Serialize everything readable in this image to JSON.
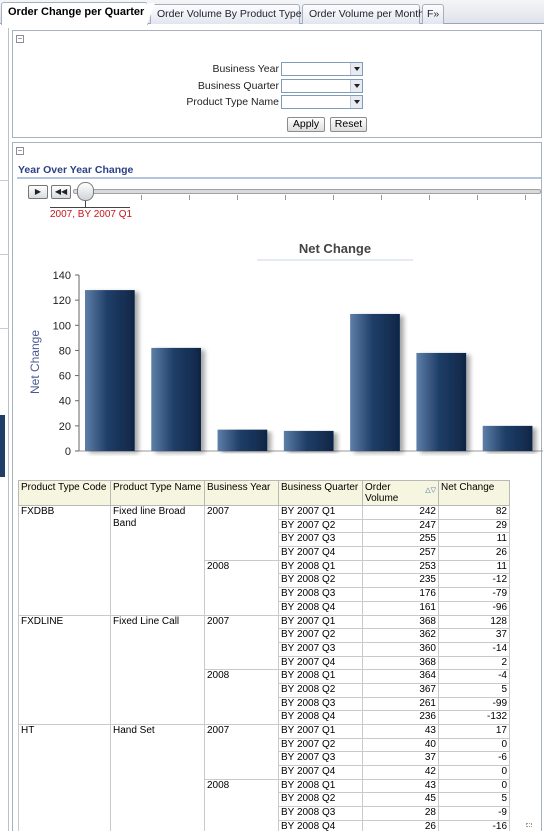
{
  "tabs": [
    {
      "label": "Order Change per Quarter",
      "active": true
    },
    {
      "label": "Order Volume By Product Type",
      "active": false
    },
    {
      "label": "Order Volume per Month",
      "active": false
    },
    {
      "label": "F»",
      "active": false
    }
  ],
  "prompts": {
    "business_year_label": "Business Year",
    "business_quarter_label": "Business Quarter",
    "product_type_label": "Product Type Name",
    "business_year_value": "",
    "business_quarter_value": "",
    "product_type_value": "",
    "apply_label": "Apply",
    "reset_label": "Reset"
  },
  "section": {
    "title": "Year Over Year Change",
    "collapse_icon": "minus-box-icon"
  },
  "slider": {
    "play_icon": "play-icon",
    "rewind_icon": "rewind-icon",
    "current_label": "2007, BY 2007 Q1",
    "position": 0,
    "accent_color": "#c4161c"
  },
  "chart_data": {
    "type": "bar",
    "title": "Net Change",
    "ylabel": "Net Change",
    "xlabel": "",
    "ylim": [
      0,
      140
    ],
    "yticks": [
      0,
      20,
      40,
      60,
      80,
      100,
      120,
      140
    ],
    "values": [
      128,
      82,
      17,
      16,
      109,
      78,
      20
    ],
    "bar_color": "#1f3e68",
    "grid": false
  },
  "table": {
    "headers": [
      "Product Type Code",
      "Product Type Name",
      "Business Year",
      "Business Quarter",
      "Order Volume",
      "Net Change"
    ],
    "groups": [
      {
        "code": "FXDBB",
        "name": "Fixed line Broad Band",
        "years": [
          {
            "year": "2007",
            "rows": [
              [
                "BY 2007 Q1",
                "242",
                "82"
              ],
              [
                "BY 2007 Q2",
                "247",
                "29"
              ],
              [
                "BY 2007 Q3",
                "255",
                "11"
              ],
              [
                "BY 2007 Q4",
                "257",
                "26"
              ]
            ]
          },
          {
            "year": "2008",
            "rows": [
              [
                "BY 2008 Q1",
                "253",
                "11"
              ],
              [
                "BY 2008 Q2",
                "235",
                "-12"
              ],
              [
                "BY 2008 Q3",
                "176",
                "-79"
              ],
              [
                "BY 2008 Q4",
                "161",
                "-96"
              ]
            ]
          }
        ]
      },
      {
        "code": "FXDLINE",
        "name": "Fixed Line Call",
        "years": [
          {
            "year": "2007",
            "rows": [
              [
                "BY 2007 Q1",
                "368",
                "128"
              ],
              [
                "BY 2007 Q2",
                "362",
                "37"
              ],
              [
                "BY 2007 Q3",
                "360",
                "-14"
              ],
              [
                "BY 2007 Q4",
                "368",
                "2"
              ]
            ]
          },
          {
            "year": "2008",
            "rows": [
              [
                "BY 2008 Q1",
                "364",
                "-4"
              ],
              [
                "BY 2008 Q2",
                "367",
                "5"
              ],
              [
                "BY 2008 Q3",
                "261",
                "-99"
              ],
              [
                "BY 2008 Q4",
                "236",
                "-132"
              ]
            ]
          }
        ]
      },
      {
        "code": "HT",
        "name": "Hand Set",
        "years": [
          {
            "year": "2007",
            "rows": [
              [
                "BY 2007 Q1",
                "43",
                "17"
              ],
              [
                "BY 2007 Q2",
                "40",
                "0"
              ],
              [
                "BY 2007 Q3",
                "37",
                "-6"
              ],
              [
                "BY 2007 Q4",
                "42",
                "0"
              ]
            ]
          },
          {
            "year": "2008",
            "rows": [
              [
                "BY 2008 Q1",
                "43",
                "0"
              ],
              [
                "BY 2008 Q2",
                "45",
                "5"
              ],
              [
                "BY 2008 Q3",
                "28",
                "-9"
              ],
              [
                "BY 2008 Q4",
                "26",
                "-16"
              ]
            ]
          }
        ]
      }
    ]
  }
}
